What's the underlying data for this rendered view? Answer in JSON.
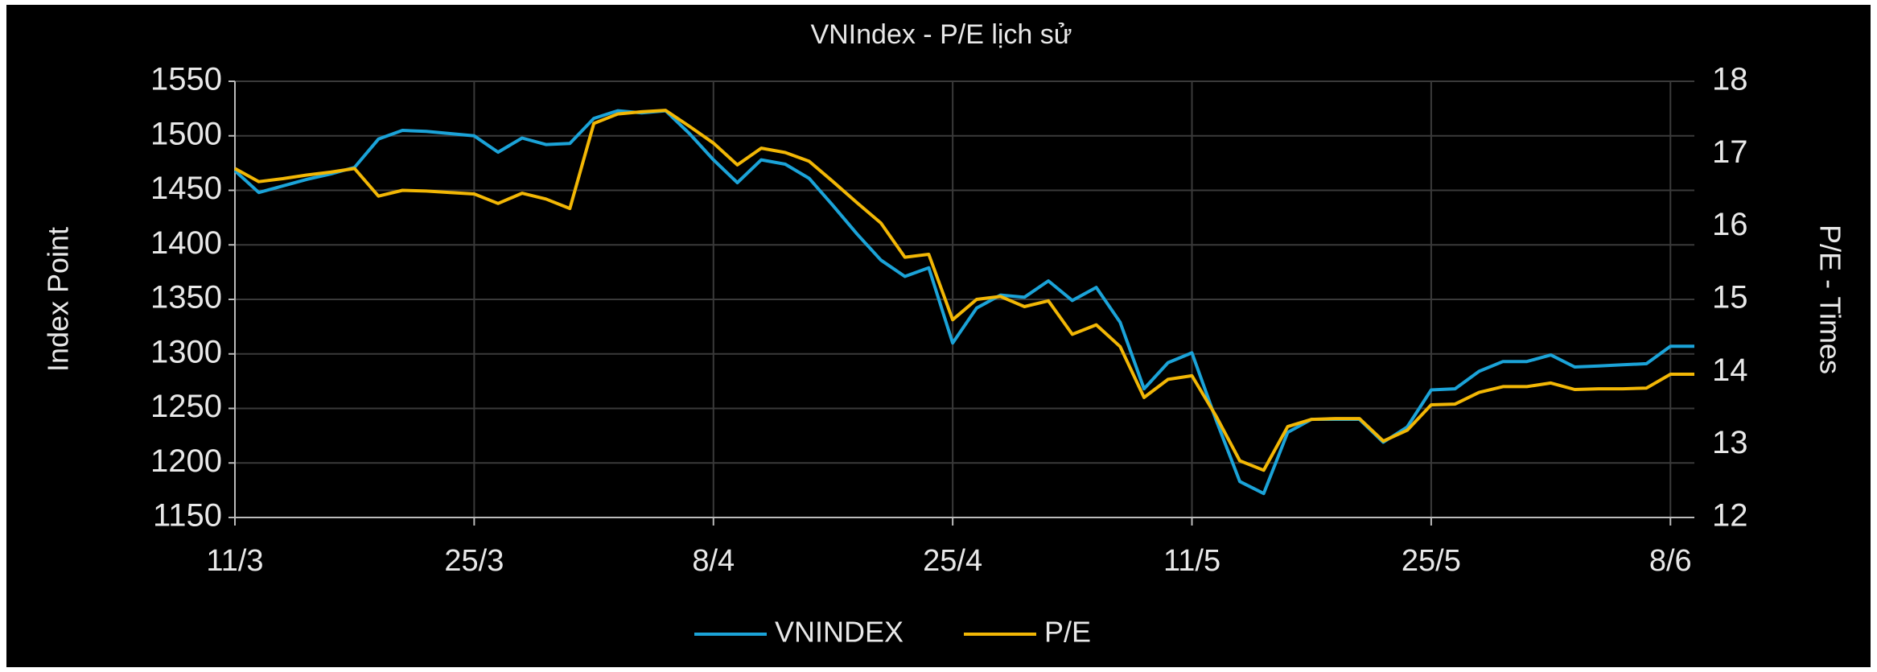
{
  "chart_data": {
    "type": "line",
    "title": "VNIndex - P/E lịch sử",
    "ylabel": "Index Point",
    "y2label": "P/E - Times",
    "categories": [
      "11/3",
      null,
      null,
      null,
      null,
      null,
      null,
      null,
      null,
      null,
      "25/3",
      null,
      null,
      null,
      null,
      null,
      null,
      null,
      null,
      null,
      "8/4",
      null,
      null,
      null,
      null,
      null,
      null,
      null,
      null,
      null,
      "25/4",
      null,
      null,
      null,
      null,
      null,
      null,
      null,
      null,
      null,
      "11/5",
      null,
      null,
      null,
      null,
      null,
      null,
      null,
      null,
      null,
      "25/5",
      null,
      null,
      null,
      null,
      null,
      null,
      null,
      null,
      null,
      "8/6",
      null
    ],
    "series": [
      {
        "name": "VNINDEX",
        "color": "#1ba3d8",
        "axis": "y",
        "values": [
          1468,
          1448,
          1454,
          1460,
          1465,
          1471,
          1497,
          1505,
          1504,
          1502,
          1500,
          1485,
          1498,
          1492,
          1493,
          1516,
          1523,
          1521,
          1523,
          1502,
          1478,
          1457,
          1478,
          1474,
          1461,
          1436,
          1410,
          1386,
          1371,
          1379,
          1310,
          1342,
          1354,
          1352,
          1367,
          1349,
          1361,
          1329,
          1268,
          1292,
          1301,
          1240,
          1183,
          1172,
          1228,
          1240,
          1240,
          1240,
          1219,
          1233,
          1267,
          1268,
          1284,
          1293,
          1293,
          1299,
          1288,
          1289,
          1290,
          1291,
          1307,
          1307
        ]
      },
      {
        "name": "P/E",
        "color": "#f2b705",
        "axis": "y2",
        "values": [
          16.8,
          16.62,
          16.66,
          16.71,
          16.75,
          16.8,
          16.42,
          16.5,
          16.49,
          16.47,
          16.45,
          16.32,
          16.46,
          16.38,
          16.25,
          17.42,
          17.55,
          17.58,
          17.6,
          17.38,
          17.15,
          16.85,
          17.08,
          17.02,
          16.9,
          16.62,
          16.33,
          16.05,
          15.58,
          15.62,
          14.72,
          15.0,
          15.04,
          14.9,
          14.98,
          14.52,
          14.65,
          14.35,
          13.65,
          13.9,
          13.95,
          13.4,
          12.78,
          12.65,
          13.25,
          13.35,
          13.36,
          13.36,
          13.05,
          13.2,
          13.55,
          13.56,
          13.72,
          13.8,
          13.8,
          13.85,
          13.76,
          13.77,
          13.77,
          13.78,
          13.97,
          13.97
        ]
      }
    ],
    "ylim": [
      1150,
      1550
    ],
    "yticks": [
      1150,
      1200,
      1250,
      1300,
      1350,
      1400,
      1450,
      1500,
      1550
    ],
    "y2lim": [
      12,
      18
    ],
    "y2ticks": [
      12,
      13,
      14,
      15,
      16,
      17,
      18
    ],
    "grid": true,
    "legend": "bottom"
  }
}
